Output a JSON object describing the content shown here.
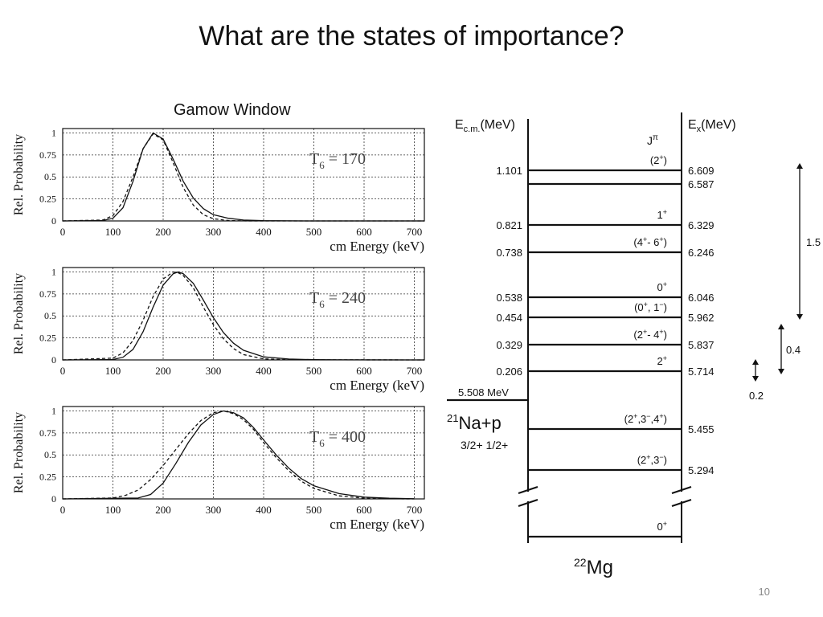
{
  "slide": {
    "title": "What are the states of importance?",
    "subtitle": "Gamow Window",
    "page_number": "10"
  },
  "chart_data": [
    {
      "type": "line",
      "panel_label": "T6 = 170",
      "xlabel": "cm Energy (keV)",
      "ylabel": "Rel. Probability",
      "xlim": [
        0,
        720
      ],
      "ylim": [
        0,
        1.05
      ],
      "xticks": [
        0,
        100,
        200,
        300,
        400,
        500,
        600,
        700
      ],
      "yticks": [
        0,
        0.25,
        0.5,
        0.75,
        1
      ],
      "grid": true,
      "series": [
        {
          "style": "solid",
          "x": [
            0,
            80,
            100,
            120,
            140,
            160,
            180,
            200,
            220,
            240,
            260,
            280,
            300,
            330,
            360,
            400,
            450,
            500,
            720
          ],
          "y": [
            0,
            0.005,
            0.03,
            0.15,
            0.45,
            0.82,
            1.0,
            0.93,
            0.7,
            0.45,
            0.26,
            0.14,
            0.07,
            0.03,
            0.01,
            0.003,
            0.001,
            0,
            0
          ]
        },
        {
          "style": "dashed",
          "x": [
            0,
            80,
            100,
            120,
            140,
            160,
            180,
            200,
            220,
            240,
            260,
            280,
            300,
            330,
            360,
            400,
            720
          ],
          "y": [
            0,
            0.01,
            0.06,
            0.22,
            0.5,
            0.82,
            0.99,
            0.92,
            0.66,
            0.38,
            0.18,
            0.07,
            0.025,
            0.005,
            0.001,
            0,
            0
          ]
        }
      ]
    },
    {
      "type": "line",
      "panel_label": "T6 = 240",
      "xlabel": "cm Energy (keV)",
      "ylabel": "Rel. Probability",
      "xlim": [
        0,
        720
      ],
      "ylim": [
        0,
        1.05
      ],
      "xticks": [
        0,
        100,
        200,
        300,
        400,
        500,
        600,
        700
      ],
      "yticks": [
        0,
        0.25,
        0.5,
        0.75,
        1
      ],
      "grid": true,
      "series": [
        {
          "style": "solid",
          "x": [
            0,
            100,
            120,
            140,
            160,
            180,
            200,
            220,
            230,
            240,
            260,
            280,
            300,
            320,
            340,
            360,
            400,
            450,
            500,
            550,
            720
          ],
          "y": [
            0,
            0.005,
            0.03,
            0.12,
            0.32,
            0.6,
            0.85,
            0.98,
            1.0,
            0.98,
            0.87,
            0.68,
            0.48,
            0.31,
            0.19,
            0.11,
            0.035,
            0.01,
            0.003,
            0.001,
            0
          ]
        },
        {
          "style": "dashed",
          "x": [
            0,
            100,
            120,
            140,
            160,
            180,
            200,
            220,
            230,
            240,
            260,
            280,
            300,
            320,
            340,
            360,
            400,
            450,
            720
          ],
          "y": [
            0,
            0.02,
            0.08,
            0.22,
            0.45,
            0.72,
            0.92,
            1.0,
            0.99,
            0.96,
            0.82,
            0.6,
            0.4,
            0.24,
            0.13,
            0.06,
            0.012,
            0.002,
            0
          ]
        }
      ]
    },
    {
      "type": "line",
      "panel_label": "T6 = 400",
      "xlabel": "cm Energy (keV)",
      "ylabel": "Rel. Probability",
      "xlim": [
        0,
        720
      ],
      "ylim": [
        0,
        1.05
      ],
      "xticks": [
        0,
        100,
        200,
        300,
        400,
        500,
        600,
        700
      ],
      "yticks": [
        0,
        0.25,
        0.5,
        0.75,
        1
      ],
      "grid": true,
      "series": [
        {
          "style": "solid",
          "x": [
            0,
            150,
            175,
            200,
            225,
            250,
            275,
            300,
            320,
            340,
            360,
            380,
            400,
            425,
            450,
            475,
            500,
            550,
            600,
            650,
            700
          ],
          "y": [
            0,
            0.01,
            0.05,
            0.18,
            0.4,
            0.64,
            0.84,
            0.96,
            1.0,
            0.98,
            0.92,
            0.81,
            0.67,
            0.5,
            0.35,
            0.23,
            0.15,
            0.06,
            0.02,
            0.007,
            0.002
          ]
        },
        {
          "style": "dashed",
          "x": [
            0,
            100,
            125,
            150,
            175,
            200,
            225,
            250,
            275,
            300,
            320,
            340,
            360,
            380,
            400,
            425,
            450,
            475,
            500,
            550,
            600,
            650,
            700
          ],
          "y": [
            0,
            0.01,
            0.04,
            0.1,
            0.22,
            0.38,
            0.56,
            0.74,
            0.89,
            0.98,
            1.0,
            0.97,
            0.9,
            0.79,
            0.64,
            0.47,
            0.32,
            0.2,
            0.12,
            0.035,
            0.008,
            0.002,
            0
          ]
        }
      ]
    }
  ],
  "level_diagram": {
    "ecm_header": "E",
    "ecm_header_sub": "c.m.",
    "ecm_header_unit": "(MeV)",
    "ex_header": "E",
    "ex_header_sub": "x",
    "ex_header_unit": "(MeV)",
    "jpi_header": "J",
    "jpi_header_sup": "π",
    "threshold_label": "5.508 MeV",
    "reaction_sup": "21",
    "reaction_text": "Na+p",
    "reaction_spins": "3/2+   1/2+",
    "nucleus_sup": "22",
    "nucleus": "Mg",
    "levels": [
      {
        "ecm": "1.101",
        "ex": "6.609",
        "jpi": "(2+)",
        "jpi_pos": "above"
      },
      {
        "ecm": "",
        "ex": "6.587",
        "jpi": "",
        "jpi_pos": ""
      },
      {
        "ecm": "0.821",
        "ex": "6.329",
        "jpi": "1+",
        "jpi_pos": "above"
      },
      {
        "ecm": "0.738",
        "ex": "6.246",
        "jpi": "(4+- 6+)",
        "jpi_pos": "above"
      },
      {
        "ecm": "0.538",
        "ex": "6.046",
        "jpi": "0+",
        "jpi_pos": "above"
      },
      {
        "ecm": "0.454",
        "ex": "5.962",
        "jpi": "(0+, 1−)",
        "jpi_pos": "above"
      },
      {
        "ecm": "0.329",
        "ex": "5.837",
        "jpi": "(2+- 4+)",
        "jpi_pos": "above"
      },
      {
        "ecm": "0.206",
        "ex": "5.714",
        "jpi": "2+",
        "jpi_pos": "above"
      },
      {
        "ecm": "",
        "ex": "5.455",
        "jpi": "(2+,3−,4+)",
        "jpi_pos": "above"
      },
      {
        "ecm": "",
        "ex": "5.294",
        "jpi": "(2+,3−)",
        "jpi_pos": "above"
      },
      {
        "ecm": "",
        "ex": "",
        "jpi": "0+",
        "jpi_pos": "above"
      }
    ],
    "windows": [
      {
        "label": "1.5"
      },
      {
        "label": "0.4"
      },
      {
        "label": "0.2"
      }
    ]
  }
}
